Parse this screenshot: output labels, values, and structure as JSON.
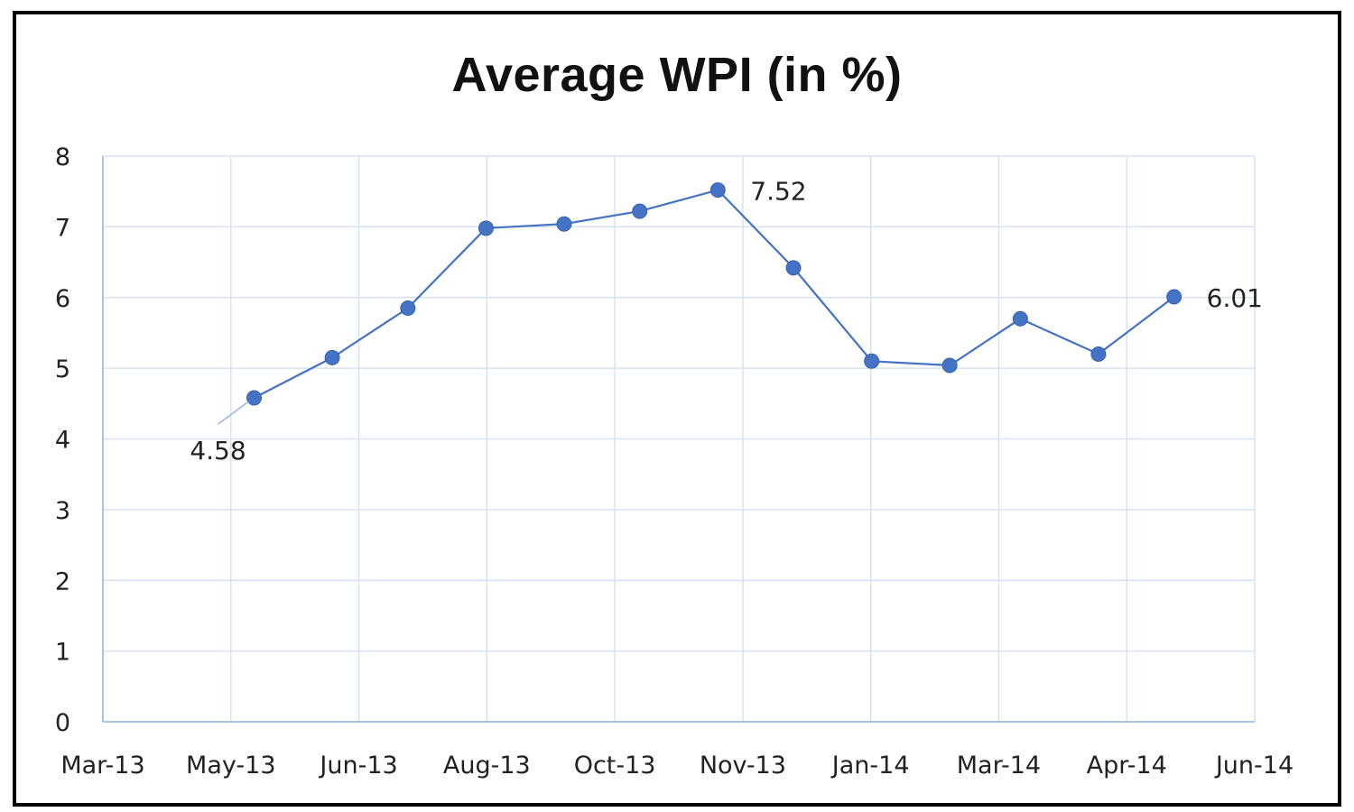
{
  "chart_data": {
    "type": "line",
    "title": "Average WPI (in %)",
    "xlabel": "",
    "ylabel": "",
    "x_tick_labels": [
      "Mar-13",
      "May-13",
      "Jun-13",
      "Aug-13",
      "Oct-13",
      "Nov-13",
      "Jan-14",
      "Mar-14",
      "Apr-14",
      "Jun-14"
    ],
    "y_tick_labels": [
      "0",
      "1",
      "2",
      "3",
      "4",
      "5",
      "6",
      "7",
      "8"
    ],
    "ylim": [
      0,
      8
    ],
    "grid": true,
    "legend": "none",
    "series": [
      {
        "color": "#4472C4",
        "points": [
          {
            "x": "2013-04-30",
            "y": 4.58
          },
          {
            "x": "2013-05-31",
            "y": 5.15
          },
          {
            "x": "2013-06-30",
            "y": 5.85
          },
          {
            "x": "2013-07-31",
            "y": 6.98
          },
          {
            "x": "2013-08-31",
            "y": 7.04
          },
          {
            "x": "2013-09-30",
            "y": 7.22
          },
          {
            "x": "2013-10-31",
            "y": 7.52
          },
          {
            "x": "2013-11-30",
            "y": 6.42
          },
          {
            "x": "2013-12-31",
            "y": 5.1
          },
          {
            "x": "2014-01-31",
            "y": 5.04
          },
          {
            "x": "2014-02-28",
            "y": 5.7
          },
          {
            "x": "2014-03-31",
            "y": 5.2
          },
          {
            "x": "2014-04-30",
            "y": 6.01
          }
        ]
      }
    ],
    "data_labels": [
      {
        "point_index": 0,
        "text": "4.58"
      },
      {
        "point_index": 6,
        "text": "7.52"
      },
      {
        "point_index": 12,
        "text": "6.01"
      }
    ],
    "colors": {
      "line": "#4472C4",
      "marker": "#4472C4",
      "grid": "#D6E2F2",
      "axis": "#A9C4E8"
    }
  }
}
